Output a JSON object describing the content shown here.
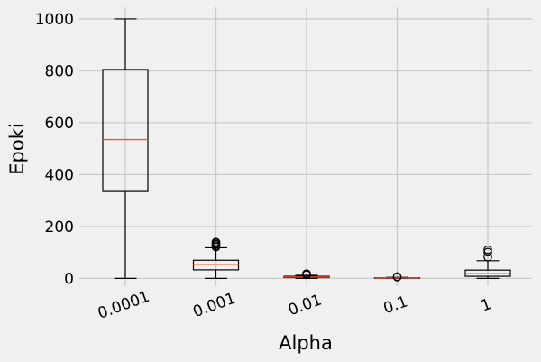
{
  "chart_data": {
    "type": "box",
    "xlabel": "Alpha",
    "ylabel": "Epoki",
    "categories": [
      "0.0001",
      "0.001",
      "0.01",
      "0.1",
      "1"
    ],
    "ylim": [
      -30,
      1045
    ],
    "yticks": [
      0,
      200,
      400,
      600,
      800,
      1000
    ],
    "grid": true,
    "series": [
      {
        "category": "0.0001",
        "min": 0,
        "q1": 335,
        "median": 535,
        "q3": 805,
        "max": 1000,
        "outliers": []
      },
      {
        "category": "0.001",
        "min": 0,
        "q1": 33,
        "median": 53,
        "q3": 70,
        "max": 118,
        "outliers": [
          121,
          126,
          131,
          136,
          140
        ]
      },
      {
        "category": "0.01",
        "min": 0,
        "q1": 3,
        "median": 5,
        "q3": 8,
        "max": 12,
        "outliers": [
          14,
          16,
          18
        ]
      },
      {
        "category": "0.1",
        "min": 0,
        "q1": 0.5,
        "median": 1.5,
        "q3": 2.5,
        "max": 4,
        "outliers": [
          5,
          7
        ]
      },
      {
        "category": "1",
        "min": 0,
        "q1": 8,
        "median": 18,
        "q3": 32,
        "max": 68,
        "outliers": [
          82,
          101,
          110
        ]
      }
    ],
    "colors": {
      "box": "#000000",
      "median": "#fc4f30",
      "grid": "#cbcbcb",
      "background": "#f0f0f0"
    }
  }
}
